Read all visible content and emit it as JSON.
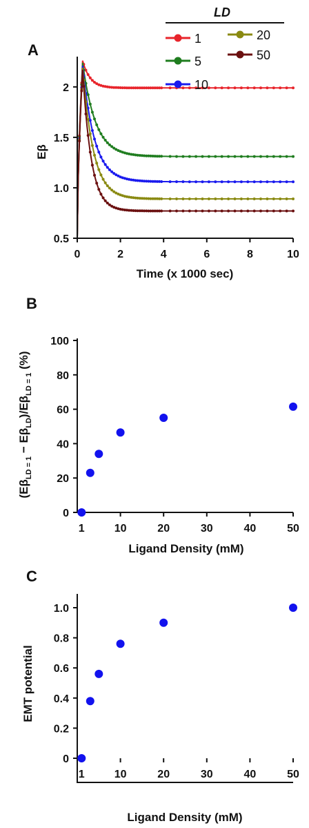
{
  "panel_labels": {
    "a": "A",
    "b": "B",
    "c": "C"
  },
  "chart_data": [
    {
      "type": "line",
      "panel": "A",
      "xlabel": "Time (x 1000 sec)",
      "ylabel": "Eβ",
      "xlim": [
        0,
        10
      ],
      "ylim": [
        0.5,
        2.3
      ],
      "xticks": [
        "0",
        "2",
        "4",
        "6",
        "8",
        "10"
      ],
      "xtick_values": [
        0,
        2,
        4,
        6,
        8,
        10
      ],
      "yticks": [
        "0.5",
        "1.0",
        "1.5",
        "2"
      ],
      "ytick_values": [
        0.5,
        1.0,
        1.5,
        2.0
      ],
      "legend_title": "LD",
      "legend_position": "top-right",
      "peak_time": 0.25,
      "series": [
        {
          "name": "1",
          "color": "#e8242b",
          "steady": 1.99,
          "peak": 2.26,
          "tau": 0.35
        },
        {
          "name": "5",
          "color": "#1f7d1f",
          "steady": 1.31,
          "peak": 2.24,
          "tau": 0.6
        },
        {
          "name": "10",
          "color": "#1a1aee",
          "steady": 1.06,
          "peak": 2.21,
          "tau": 0.55
        },
        {
          "name": "20",
          "color": "#8a8a12",
          "steady": 0.89,
          "peak": 2.19,
          "tau": 0.5
        },
        {
          "name": "50",
          "color": "#6b1010",
          "steady": 0.77,
          "peak": 2.17,
          "tau": 0.4
        }
      ]
    },
    {
      "type": "scatter",
      "panel": "B",
      "xlabel": "Ligand Density (mM)",
      "ylabel_main": "(Eβ",
      "ylabel_sub1": "LD = 1",
      "ylabel_mid": " − Eβ",
      "ylabel_sub2": "LD",
      "ylabel_mid2": ")/Eβ",
      "ylabel_sub3": "LD = 1",
      "ylabel_end": " (%)",
      "xlim": [
        0,
        50
      ],
      "ylim": [
        0,
        100
      ],
      "xticks": [
        "1",
        "10",
        "20",
        "30",
        "40",
        "50"
      ],
      "xtick_values": [
        1,
        10,
        20,
        30,
        40,
        50
      ],
      "yticks": [
        "0",
        "20",
        "40",
        "60",
        "80",
        "100"
      ],
      "ytick_values": [
        0,
        20,
        40,
        60,
        80,
        100
      ],
      "color": "#1212ee",
      "x": [
        1,
        3,
        5,
        10,
        20,
        50
      ],
      "y": [
        0,
        23,
        34,
        46.5,
        55,
        61.5
      ]
    },
    {
      "type": "scatter",
      "panel": "C",
      "xlabel": "Ligand Density (mM)",
      "ylabel": "EMT potential",
      "xlim": [
        0,
        50
      ],
      "ylim": [
        0,
        1.0
      ],
      "xticks": [
        "1",
        "10",
        "20",
        "30",
        "40",
        "50"
      ],
      "xtick_values": [
        1,
        10,
        20,
        30,
        40,
        50
      ],
      "yticks": [
        "0",
        "0.2",
        "0.4",
        "0.6",
        "0.8",
        "1.0"
      ],
      "ytick_values": [
        0,
        0.2,
        0.4,
        0.6,
        0.8,
        1.0
      ],
      "color": "#1212ee",
      "x": [
        1,
        3,
        5,
        10,
        20,
        50
      ],
      "y": [
        0,
        0.38,
        0.56,
        0.76,
        0.9,
        1.0
      ]
    }
  ]
}
